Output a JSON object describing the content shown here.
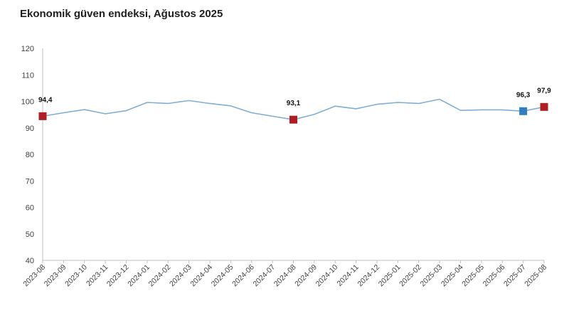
{
  "chart_data": {
    "type": "line",
    "title": "Ekonomik güven endeksi, Ağustos 2025",
    "xlabel": "",
    "ylabel": "",
    "ylim": [
      40,
      120
    ],
    "yticks": [
      40,
      50,
      60,
      70,
      80,
      90,
      100,
      110,
      120
    ],
    "grid": false,
    "legend": "none",
    "categories": [
      "2023-08",
      "2023-09",
      "2023-10",
      "2023-11",
      "2023-12",
      "2024-01",
      "2024-02",
      "2024-03",
      "2024-04",
      "2024-05",
      "2024-06",
      "2024-07",
      "2024-08",
      "2024-09",
      "2024-10",
      "2024-11",
      "2024-12",
      "2025-01",
      "2025-02",
      "2025-03",
      "2025-04",
      "2025-05",
      "2025-06",
      "2025-07",
      "2025-08"
    ],
    "series": [
      {
        "values": [
          94.4,
          95.7,
          96.9,
          95.3,
          96.5,
          99.6,
          99.2,
          100.3,
          99.2,
          98.3,
          95.7,
          94.4,
          93.1,
          95.1,
          98.2,
          97.2,
          98.9,
          99.6,
          99.2,
          100.8,
          96.6,
          96.8,
          96.8,
          96.3,
          97.9
        ],
        "color": "#7FAED3"
      }
    ],
    "markers": [
      {
        "index": 0,
        "label": "94,4",
        "color": "#B01E23"
      },
      {
        "index": 12,
        "label": "93,1",
        "color": "#B01E23"
      },
      {
        "index": 23,
        "label": "96,3",
        "color": "#2E7FC1"
      },
      {
        "index": 24,
        "label": "97,9",
        "color": "#B01E23"
      }
    ],
    "axis_color": "#BFBFBF"
  }
}
